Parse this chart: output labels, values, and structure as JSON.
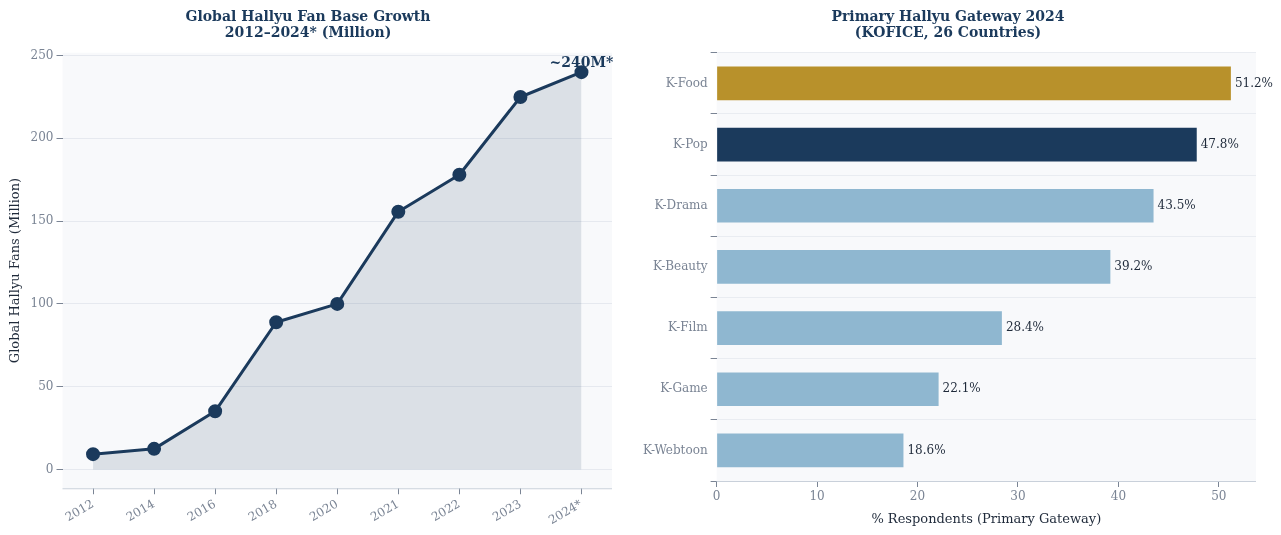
{
  "chart_data": [
    {
      "type": "area",
      "title": "Global Hallyu Fan Base Growth\n2012–2024* (Million)",
      "ylabel": "Global Hallyu Fans (Million)",
      "categories": [
        "2012",
        "2014",
        "2016",
        "2018",
        "2020",
        "2021",
        "2022",
        "2023",
        "2024*"
      ],
      "series": [
        {
          "color": "#1b3a5c",
          "values": [
            9.2,
            12.4,
            35.1,
            88.9,
            100,
            155.7,
            178,
            225,
            240
          ]
        }
      ],
      "ylim": [
        -11.4,
        251.7
      ],
      "yticks": [
        0,
        50,
        100,
        150,
        200,
        250
      ],
      "grid": "y",
      "marker": "circle",
      "legend": false,
      "annotations": [
        {
          "text": "~240M*",
          "x": "2024*",
          "y": 240
        }
      ]
    },
    {
      "type": "bar",
      "orientation": "horizontal",
      "title": "Primary Hallyu Gateway 2024\n(KOFICE, 26 Countries)",
      "xlabel": "% Respondents (Primary Gateway)",
      "categories": [
        "K-Food",
        "K-Pop",
        "K-Drama",
        "K-Beauty",
        "K-Film",
        "K-Game",
        "K-Webtoon"
      ],
      "values": [
        51.2,
        47.8,
        43.5,
        39.2,
        28.4,
        22.1,
        18.6
      ],
      "colors": [
        "#b8912b",
        "#1b3a5c",
        "#8fb7d0",
        "#8fb7d0",
        "#8fb7d0",
        "#8fb7d0",
        "#8fb7d0"
      ],
      "value_labels": [
        "51.2%",
        "47.8%",
        "43.5%",
        "39.2%",
        "28.4%",
        "22.1%",
        "18.6%"
      ],
      "xlim": [
        0,
        53.7
      ],
      "xticks": [
        0,
        10,
        20,
        30,
        40,
        50
      ],
      "grid": "y",
      "legend": false
    }
  ]
}
